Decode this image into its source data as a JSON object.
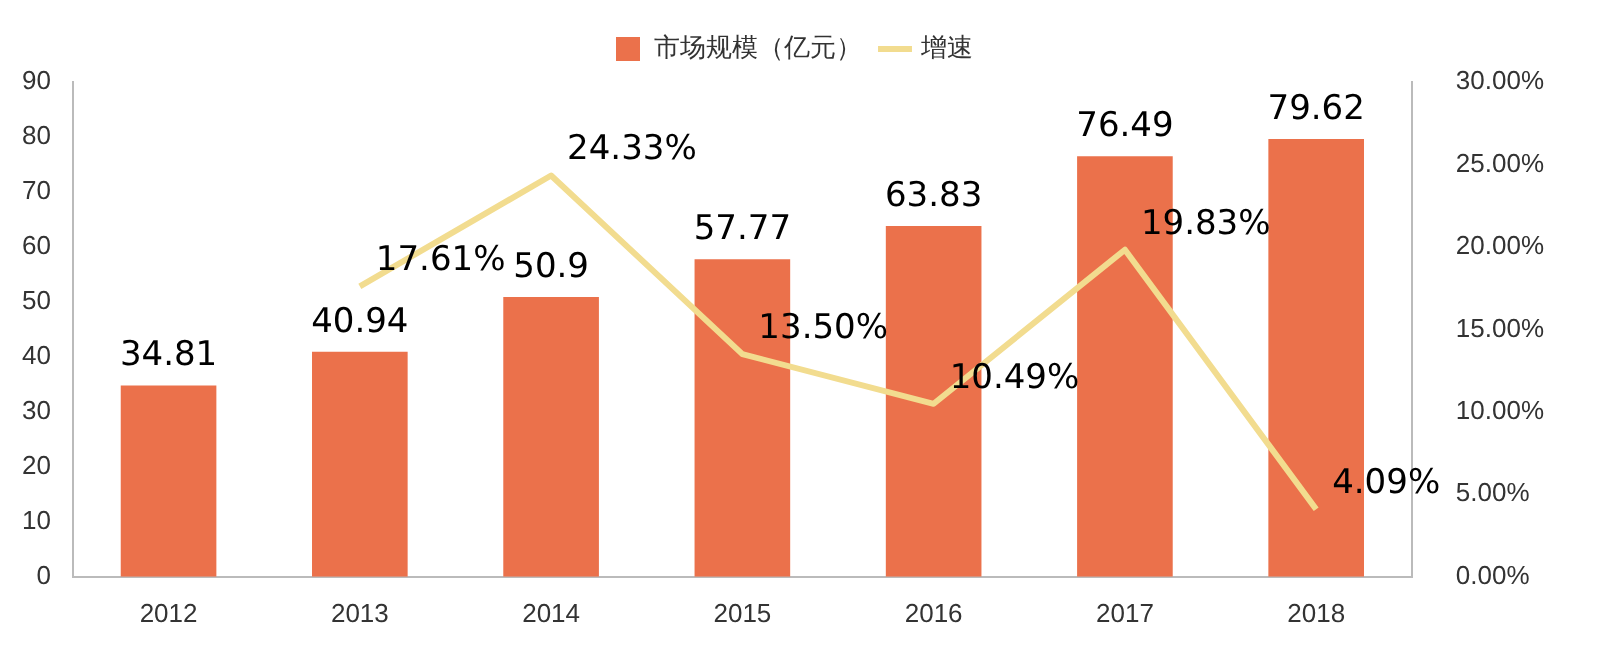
{
  "chart_data": {
    "type": "bar",
    "categories": [
      "2012",
      "2013",
      "2014",
      "2015",
      "2016",
      "2017",
      "2018"
    ],
    "series": [
      {
        "name": "市场规模（亿元）",
        "color": "#eb714b",
        "values": [
          34.81,
          40.94,
          50.9,
          57.77,
          63.83,
          76.49,
          79.62
        ],
        "value_labels": [
          "34.81",
          "40.94",
          "50.9",
          "57.77",
          "63.83",
          "76.49",
          "79.62"
        ]
      },
      {
        "name": "增速",
        "type": "line",
        "axis": "y2",
        "color": "#f2dc8f",
        "values": [
          null,
          17.61,
          24.33,
          13.5,
          10.49,
          19.83,
          4.09
        ],
        "value_labels": [
          null,
          "17.61%",
          "24.33%",
          "13.50%",
          "10.49%",
          "19.83%",
          "4.09%"
        ]
      }
    ],
    "ylim": [
      0,
      90
    ],
    "yticks": [
      0,
      10,
      20,
      30,
      40,
      50,
      60,
      70,
      80,
      90
    ],
    "y2lim": [
      0,
      30
    ],
    "y2ticks": [
      {
        "value": 0,
        "label": "0.00%"
      },
      {
        "value": 5,
        "label": "5.00%"
      },
      {
        "value": 10,
        "label": "10.00%"
      },
      {
        "value": 15,
        "label": "15.00%"
      },
      {
        "value": 20,
        "label": "20.00%"
      },
      {
        "value": 25,
        "label": "25.00%"
      },
      {
        "value": 30,
        "label": "30.00%"
      }
    ],
    "grid": false,
    "legend": "top",
    "marker": "none",
    "line_style": "solid"
  }
}
